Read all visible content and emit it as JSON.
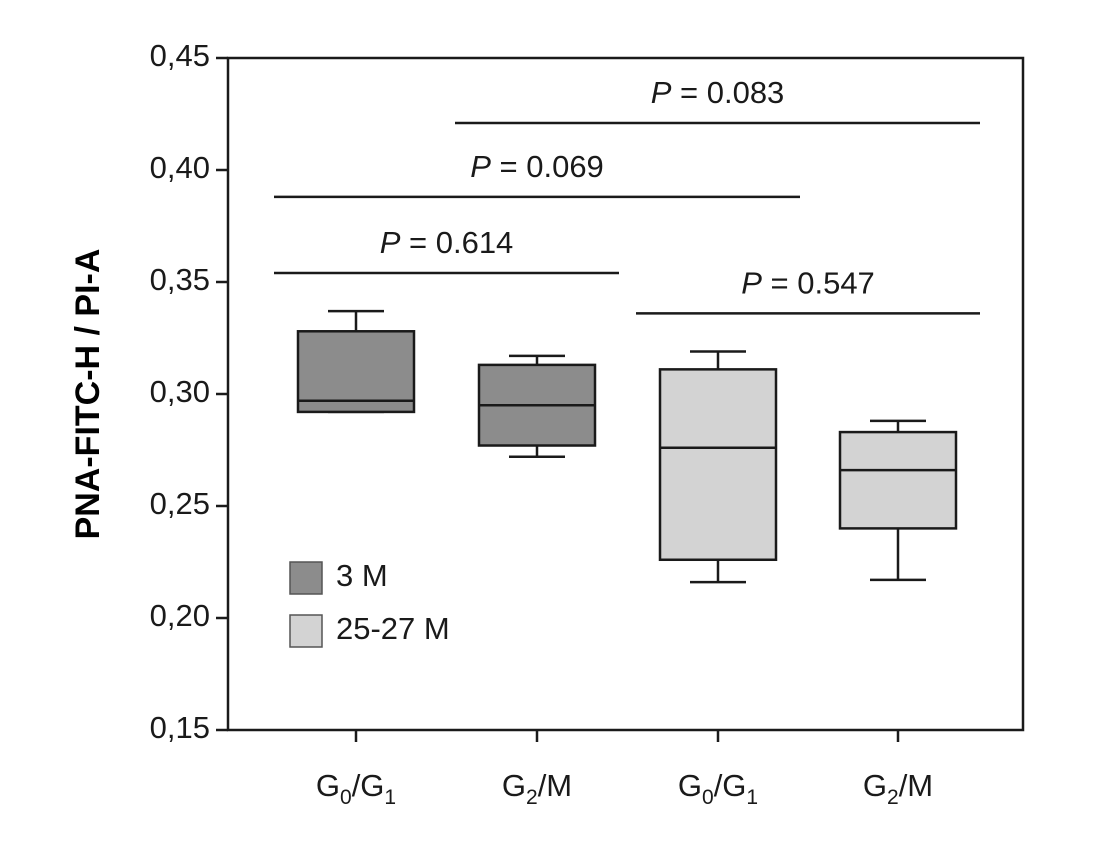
{
  "chart_data": {
    "type": "box",
    "title": "",
    "xlabel": "",
    "ylabel": "PNA-FITC-H / PI-A",
    "ylim": [
      0.15,
      0.45
    ],
    "yticks": [
      "0,15",
      "0,20",
      "0,25",
      "0,30",
      "0,35",
      "0,40",
      "0,45"
    ],
    "ytick_values": [
      0.15,
      0.2,
      0.25,
      0.3,
      0.35,
      0.4,
      0.45
    ],
    "grid": false,
    "legend_position": "bottom-left",
    "series": [
      {
        "name": "3 M",
        "color": "#8c8c8c"
      },
      {
        "name": "25-27 M",
        "color": "#d3d3d3"
      }
    ],
    "boxes": [
      {
        "series": 0,
        "label": {
          "main": "G",
          "sub1": "0",
          "mid": "/G",
          "sub2": "1"
        },
        "whisker_low": 0.292,
        "q1": 0.292,
        "median": 0.297,
        "q3": 0.328,
        "whisker_high": 0.337
      },
      {
        "series": 0,
        "label": {
          "main": "G",
          "sub1": "2",
          "mid": "/M",
          "sub2": ""
        },
        "whisker_low": 0.272,
        "q1": 0.277,
        "median": 0.295,
        "q3": 0.313,
        "whisker_high": 0.317
      },
      {
        "series": 1,
        "label": {
          "main": "G",
          "sub1": "0",
          "mid": "/G",
          "sub2": "1"
        },
        "whisker_low": 0.216,
        "q1": 0.226,
        "median": 0.276,
        "q3": 0.311,
        "whisker_high": 0.319
      },
      {
        "series": 1,
        "label": {
          "main": "G",
          "sub1": "2",
          "mid": "/M",
          "sub2": ""
        },
        "whisker_low": 0.217,
        "q1": 0.24,
        "median": 0.266,
        "q3": 0.283,
        "whisker_high": 0.288
      }
    ],
    "annotations": [
      {
        "from": 0,
        "to": 1,
        "y": 0.354,
        "italic": "P",
        "text": " = 0.614"
      },
      {
        "from": 0,
        "to": 2,
        "y": 0.388,
        "italic": "P",
        "text": " = 0.069"
      },
      {
        "from": 1,
        "to": 3,
        "y": 0.421,
        "italic": "P",
        "text": " = 0.083"
      },
      {
        "from": 2,
        "to": 3,
        "y": 0.336,
        "italic": "P",
        "text": " = 0.547"
      }
    ]
  }
}
